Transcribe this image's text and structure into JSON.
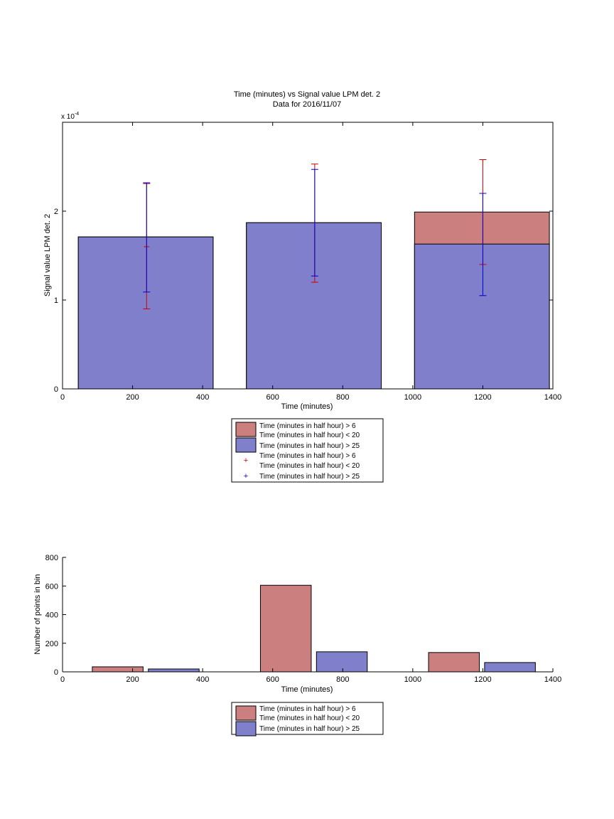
{
  "colors": {
    "red_fill": "#cc7f7f",
    "blue_fill": "#7f7fcc",
    "red_err": "#cc0000",
    "blue_err": "#0000cc"
  },
  "chart_data": [
    {
      "type": "bar",
      "title": "Time (minutes) vs Signal value LPM det. 2",
      "subtitle": "Data for 2016/11/07",
      "xlabel": "Time (minutes)",
      "ylabel": "Signal value LPM det. 2",
      "exponent_label": "x 10",
      "exponent_power": "-4",
      "xlim": [
        0,
        1400
      ],
      "ylim": [
        0,
        0.0003
      ],
      "xticks": [
        "0",
        "200",
        "400",
        "600",
        "800",
        "1000",
        "1200",
        "1400"
      ],
      "yticks": [
        "0",
        "1",
        "2"
      ],
      "grid": false,
      "legend_placement": "below plot",
      "legend": [
        {
          "marker": "patch",
          "color": "red",
          "label": "Time (minutes in half hour) > 6\nTime (minutes in half hour) < 20"
        },
        {
          "marker": "patch",
          "color": "blue",
          "label": "Time (minutes in half hour) > 25"
        },
        {
          "marker": "plus",
          "color": "red",
          "label": "Time (minutes in half hour) > 6\nTime (minutes in half hour) < 20"
        },
        {
          "marker": "plus",
          "color": "blue",
          "label": "Time (minutes in half hour) > 25"
        }
      ],
      "bars": [
        {
          "x0": 45,
          "x1": 430,
          "red": 0.000171,
          "blue": 0.000171
        },
        {
          "x0": 525,
          "x1": 910,
          "red": 0.000187,
          "blue": 0.000187
        },
        {
          "x0": 1005,
          "x1": 1390,
          "red": 0.000199,
          "blue": 0.000163
        }
      ],
      "errorbars": [
        {
          "series": "red",
          "x": 240,
          "low": 9e-05,
          "high": 0.000231,
          "mid": 0.00016
        },
        {
          "series": "blue",
          "x": 240,
          "low": 0.000109,
          "high": 0.000232
        },
        {
          "series": "red",
          "x": 720,
          "low": 0.00012,
          "high": 0.000253
        },
        {
          "series": "blue",
          "x": 720,
          "low": 0.000127,
          "high": 0.000247
        },
        {
          "series": "red",
          "x": 1200,
          "low": 0.00014,
          "high": 0.000258
        },
        {
          "series": "blue",
          "x": 1200,
          "low": 0.000105,
          "high": 0.00022
        }
      ]
    },
    {
      "type": "bar",
      "xlabel": "Time (minutes)",
      "ylabel": "Number of points in bin",
      "xlim": [
        0,
        1400
      ],
      "ylim": [
        0,
        800
      ],
      "xticks": [
        "0",
        "200",
        "400",
        "600",
        "800",
        "1000",
        "1200",
        "1400"
      ],
      "yticks": [
        "0",
        "200",
        "400",
        "600",
        "800"
      ],
      "grid": false,
      "legend_placement": "below plot",
      "legend": [
        {
          "marker": "patch",
          "color": "red",
          "label": "Time (minutes in half hour) > 6\nTime (minutes in half hour) < 20"
        },
        {
          "marker": "patch",
          "color": "blue",
          "label": "Time (minutes in half hour) > 25"
        }
      ],
      "bars": [
        {
          "series": "red",
          "x0": 85,
          "x1": 230,
          "value": 35
        },
        {
          "series": "blue",
          "x0": 245,
          "x1": 390,
          "value": 20
        },
        {
          "series": "red",
          "x0": 565,
          "x1": 710,
          "value": 605
        },
        {
          "series": "blue",
          "x0": 725,
          "x1": 870,
          "value": 140
        },
        {
          "series": "red",
          "x0": 1045,
          "x1": 1190,
          "value": 135
        },
        {
          "series": "blue",
          "x0": 1205,
          "x1": 1350,
          "value": 65
        }
      ]
    }
  ]
}
